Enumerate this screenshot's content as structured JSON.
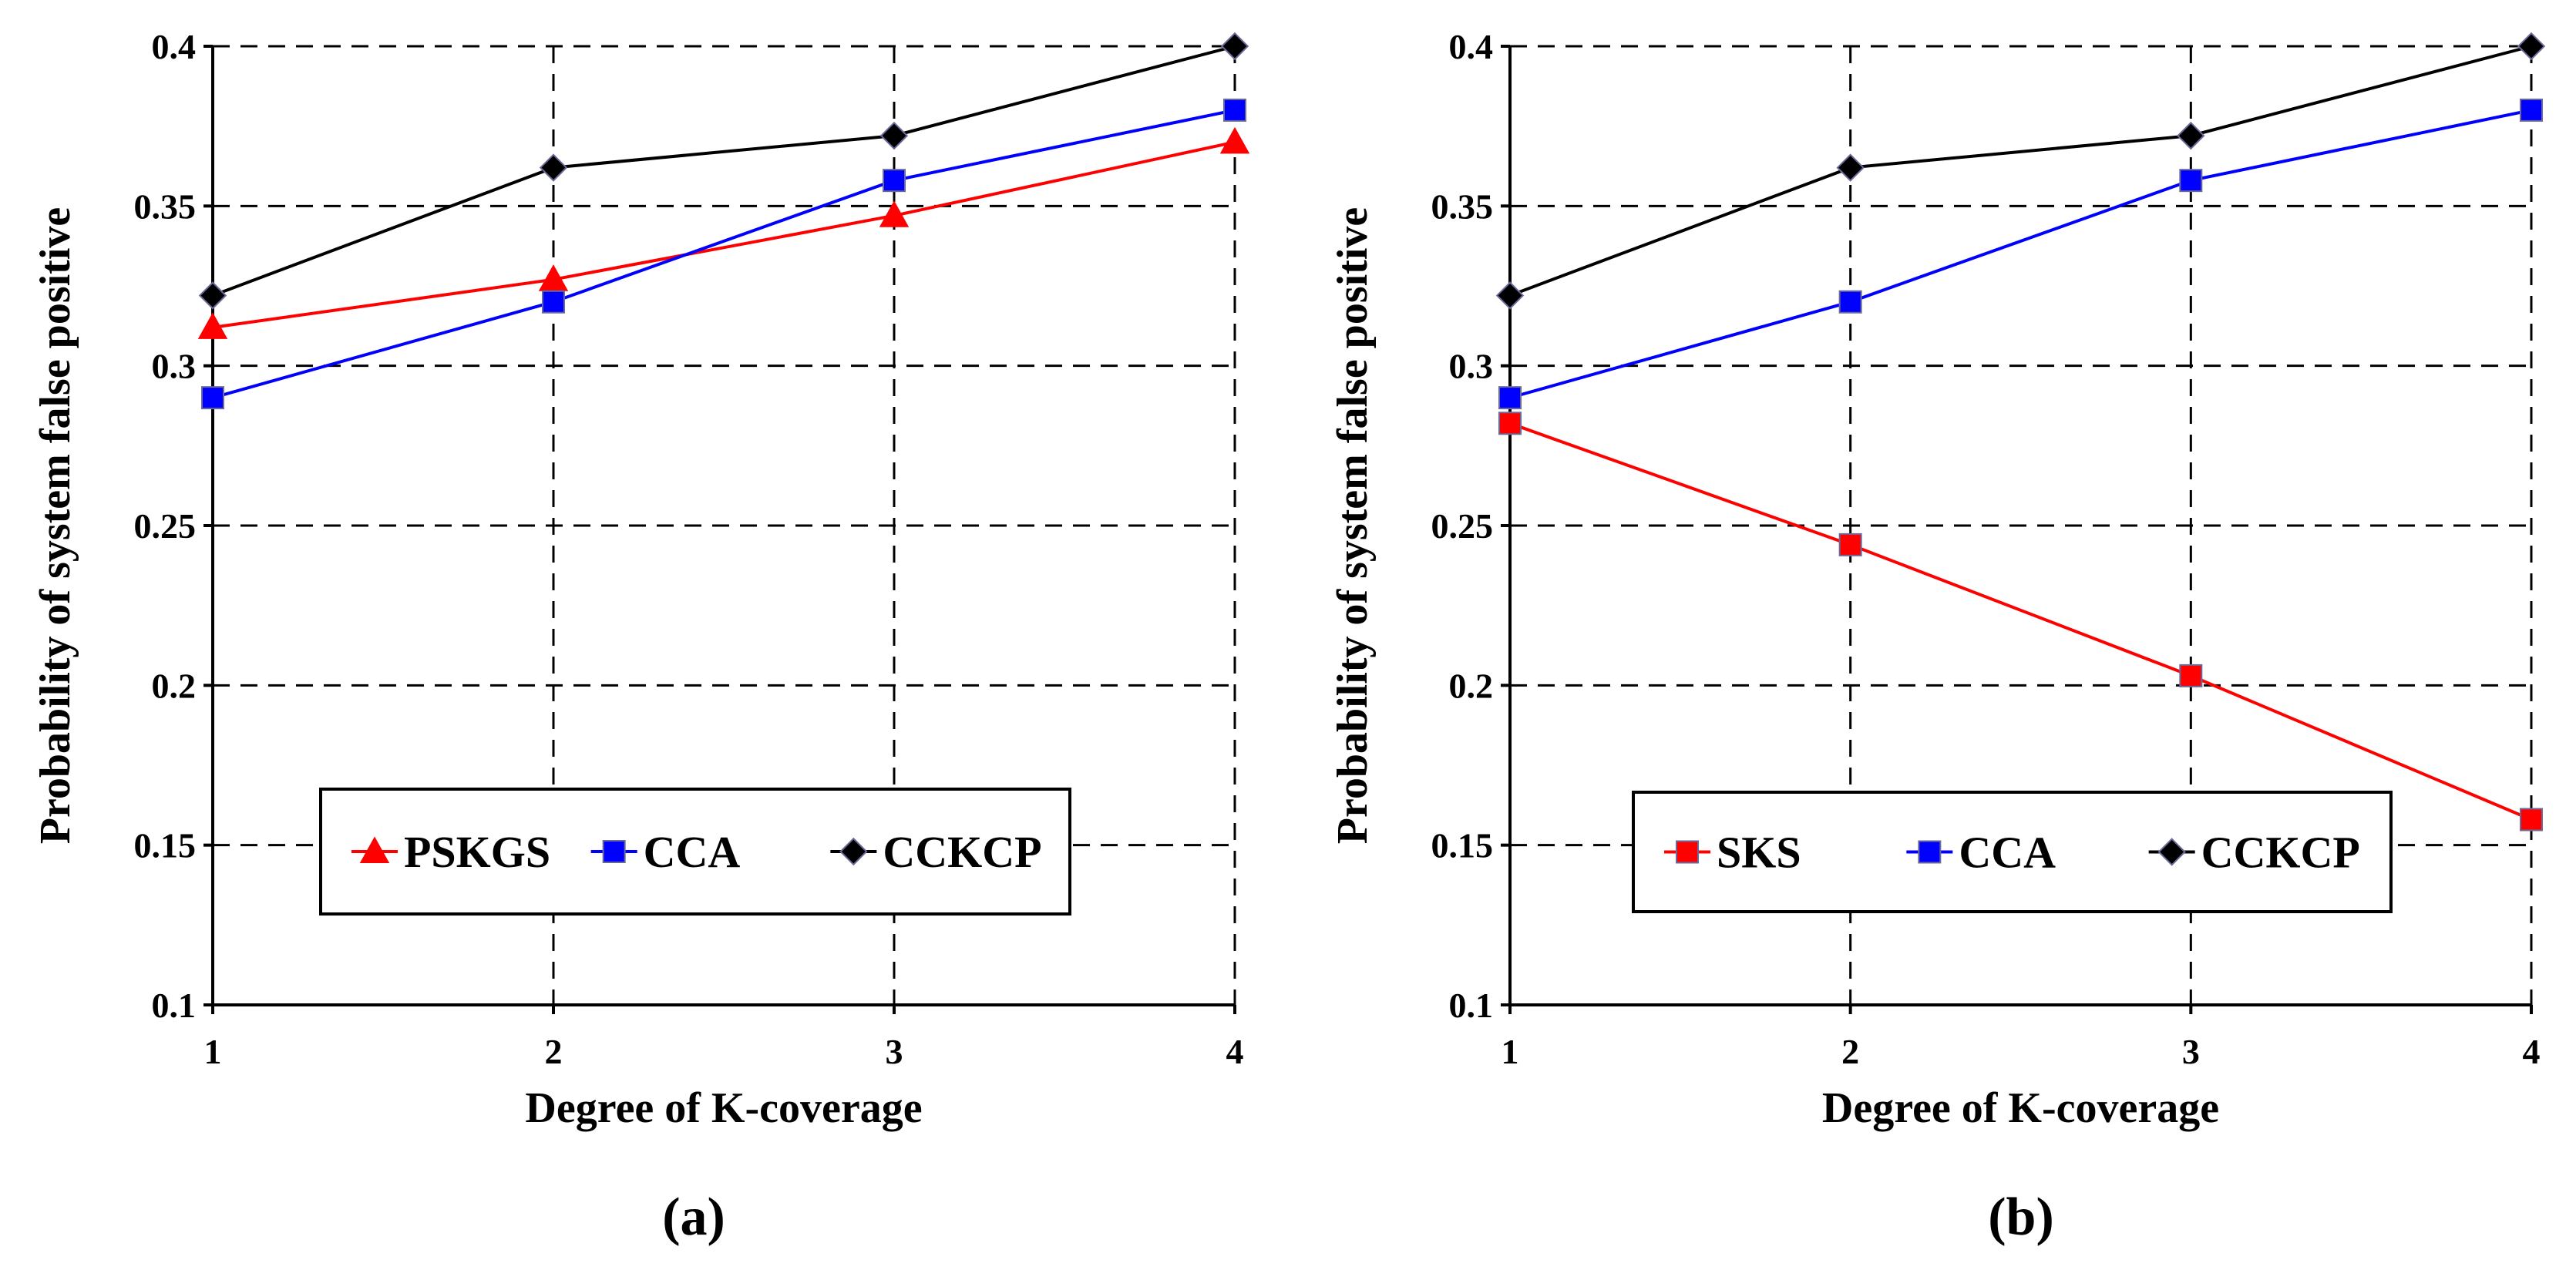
{
  "chart_data": [
    {
      "type": "line",
      "caption": "(a)",
      "xlabel": "Degree of K-coverage",
      "ylabel": "Probability of system false positive",
      "x": [
        1,
        2,
        3,
        4
      ],
      "xticks": [
        "1",
        "2",
        "3",
        "4"
      ],
      "yticks": [
        "0.1",
        "0.15",
        "0.2",
        "0.25",
        "0.3",
        "0.35",
        "0.4"
      ],
      "ylim": [
        0.1,
        0.4
      ],
      "grid": true,
      "legend_position": "bottom-center",
      "series": [
        {
          "name": "PSKGS",
          "values": [
            0.312,
            0.327,
            0.347,
            0.37
          ],
          "color": "#ff0000",
          "marker": "triangle"
        },
        {
          "name": "CCA",
          "values": [
            0.29,
            0.32,
            0.358,
            0.38
          ],
          "color": "#0000ff",
          "marker": "square"
        },
        {
          "name": "CCKCP",
          "values": [
            0.322,
            0.362,
            0.372,
            0.4
          ],
          "color": "#000000",
          "marker": "diamond"
        }
      ]
    },
    {
      "type": "line",
      "caption": "(b)",
      "xlabel": "Degree of K-coverage",
      "ylabel": "Probability of system false positive",
      "x": [
        1,
        2,
        3,
        4
      ],
      "xticks": [
        "1",
        "2",
        "3",
        "4"
      ],
      "yticks": [
        "0.1",
        "0.15",
        "0.2",
        "0.25",
        "0.3",
        "0.35",
        "0.4"
      ],
      "ylim": [
        0.1,
        0.4
      ],
      "grid": true,
      "legend_position": "bottom-center",
      "series": [
        {
          "name": "SKS",
          "values": [
            0.282,
            0.244,
            0.203,
            0.158
          ],
          "color": "#ff0000",
          "marker": "square"
        },
        {
          "name": "CCA",
          "values": [
            0.29,
            0.32,
            0.358,
            0.38
          ],
          "color": "#0000ff",
          "marker": "square"
        },
        {
          "name": "CCKCP",
          "values": [
            0.322,
            0.362,
            0.372,
            0.4
          ],
          "color": "#000000",
          "marker": "diamond"
        }
      ]
    }
  ]
}
